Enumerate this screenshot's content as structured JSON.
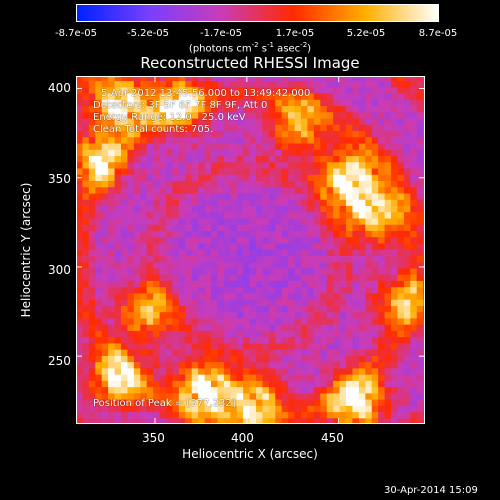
{
  "chart_data": {
    "type": "heatmap",
    "title": "Reconstructed RHESSI Image",
    "xlabel": "Heliocentric X (arcsec)",
    "ylabel": "Heliocentric Y (arcsec)",
    "xlim": [
      307,
      497
    ],
    "ylim": [
      212,
      407
    ],
    "x_ticks": [
      350,
      400,
      450
    ],
    "y_ticks": [
      250,
      300,
      350,
      400
    ],
    "colorbar": {
      "range": [
        -8.7e-05,
        8.7e-05
      ],
      "tick_labels": [
        "-8.7e-05",
        "-5.2e-05",
        "-1.7e-05",
        "1.7e-05",
        "5.2e-05",
        "8.7e-05"
      ],
      "units_text": "(photons cm",
      "units_sup1": "-2",
      "units_mid": " s",
      "units_sup2": "-1",
      "units_mid2": " asec",
      "units_sup3": "-2",
      "units_end": ")",
      "colormap": [
        "#0022ff",
        "#7a3fff",
        "#c93cb8",
        "#ff2a00",
        "#ffb000",
        "#ffffff"
      ]
    },
    "annotations": {
      "time_range": "5-Apr-2012 13:45:56.000 to 13:49:42.000",
      "detectors": "Detectors: 3F 5F 6F 7F 8F 9F, Att 0",
      "energy": "Energy Range: 12.0 - 25.0 keV",
      "clean": "Clean    Total counts: 705.",
      "peak": "Position of Peak = [377,232]"
    },
    "peak_position": [
      377,
      232
    ],
    "bright_regions_arcsec": [
      {
        "x": 331,
        "y": 392,
        "level": 0.96
      },
      {
        "x": 363,
        "y": 392,
        "level": 0.8
      },
      {
        "x": 318,
        "y": 360,
        "level": 0.75
      },
      {
        "x": 455,
        "y": 350,
        "level": 0.98
      },
      {
        "x": 470,
        "y": 330,
        "level": 0.85
      },
      {
        "x": 428,
        "y": 380,
        "level": 0.65
      },
      {
        "x": 330,
        "y": 238,
        "level": 0.85
      },
      {
        "x": 377,
        "y": 232,
        "level": 1.0
      },
      {
        "x": 405,
        "y": 225,
        "level": 0.8
      },
      {
        "x": 460,
        "y": 225,
        "level": 0.95
      },
      {
        "x": 345,
        "y": 275,
        "level": 0.7
      },
      {
        "x": 485,
        "y": 280,
        "level": 0.6
      }
    ]
  },
  "footer": {
    "timestamp": "30-Apr-2014 15:09"
  }
}
